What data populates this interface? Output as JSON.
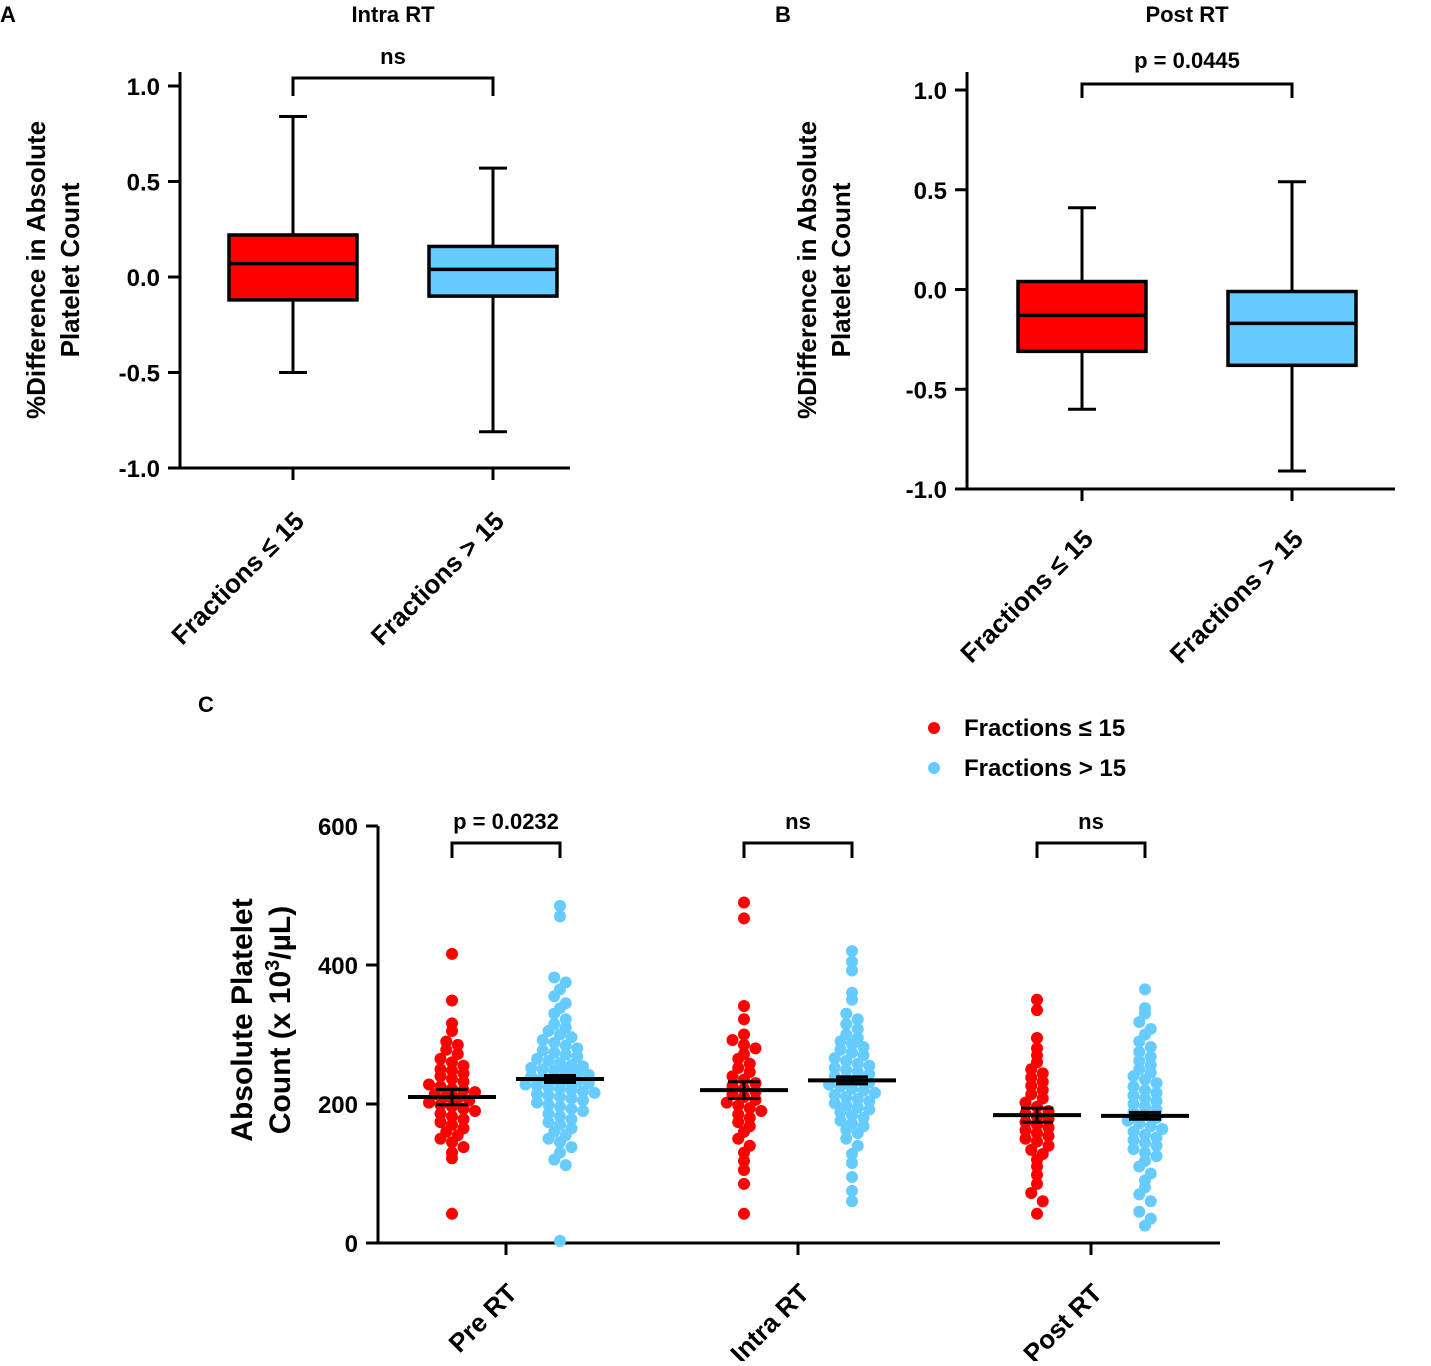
{
  "chart_data": [
    {
      "panel": "A",
      "type": "box",
      "title": "Intra RT",
      "ylabel_line1": "%Difference in Absolute",
      "ylabel_line2": "Platelet Count",
      "ylim": [
        -1.0,
        1.0
      ],
      "yticks": [
        "1.0",
        "0.5",
        "0.0",
        "-0.5",
        "-1.0"
      ],
      "ytick_values": [
        1.0,
        0.5,
        0.0,
        -0.5,
        -1.0
      ],
      "categories": [
        "Fractions ≤ 15",
        "Fractions > 15"
      ],
      "colors": [
        "#ff0000",
        "#66ccff"
      ],
      "boxes": [
        {
          "min": -0.5,
          "q1": -0.12,
          "median": 0.07,
          "q3": 0.22,
          "max": 0.84
        },
        {
          "min": -0.81,
          "q1": -0.1,
          "median": 0.04,
          "q3": 0.16,
          "max": 0.57
        }
      ],
      "comparison": "ns"
    },
    {
      "panel": "B",
      "type": "box",
      "title": "Post RT",
      "ylabel_line1": "%Difference in Absolute",
      "ylabel_line2": "Platelet Count",
      "ylim": [
        -1.0,
        1.0
      ],
      "yticks": [
        "1.0",
        "0.5",
        "0.0",
        "-0.5",
        "-1.0"
      ],
      "ytick_values": [
        1.0,
        0.5,
        0.0,
        -0.5,
        -1.0
      ],
      "categories": [
        "Fractions ≤ 15",
        "Fractions > 15"
      ],
      "colors": [
        "#ff0000",
        "#66ccff"
      ],
      "boxes": [
        {
          "min": -0.6,
          "q1": -0.31,
          "median": -0.13,
          "q3": 0.04,
          "max": 0.41
        },
        {
          "min": -0.91,
          "q1": -0.38,
          "median": -0.17,
          "q3": -0.01,
          "max": 0.54
        }
      ],
      "comparison": "p = 0.0445"
    },
    {
      "panel": "C",
      "type": "scatter",
      "ylabel_line1": "Absolute Platelet",
      "ylabel_line2_pre": "Count (x 10",
      "ylabel_sup": "3",
      "ylabel_line2_post": "/µL)",
      "ylim": [
        0,
        600
      ],
      "yticks": [
        "600",
        "400",
        "200",
        "0"
      ],
      "ytick_values": [
        600,
        400,
        200,
        0
      ],
      "legend": [
        "Fractions ≤ 15",
        "Fractions > 15"
      ],
      "colors": [
        "#ff0000",
        "#66ccff"
      ],
      "groups": [
        {
          "label": "Pre RT",
          "comparison": "p = 0.0232",
          "series": [
            {
              "mean": 210,
              "sem": 11,
              "values": [
                416,
                349,
                316,
                305,
                290,
                285,
                278,
                272,
                265,
                260,
                255,
                250,
                248,
                244,
                240,
                236,
                232,
                228,
                225,
                222,
                220,
                217,
                214,
                211,
                208,
                205,
                202,
                199,
                196,
                193,
                190,
                186,
                182,
                178,
                174,
                170,
                165,
                160,
                155,
                150,
                145,
                138,
                130,
                122,
                42
              ]
            },
            {
              "mean": 236,
              "sem": 5,
              "values": [
                485,
                470,
                382,
                375,
                365,
                355,
                345,
                338,
                330,
                322,
                315,
                310,
                305,
                300,
                296,
                292,
                288,
                284,
                280,
                277,
                274,
                271,
                268,
                265,
                262,
                259,
                256,
                254,
                252,
                250,
                248,
                246,
                244,
                242,
                240,
                238,
                236,
                234,
                232,
                230,
                228,
                226,
                224,
                222,
                220,
                218,
                216,
                214,
                212,
                210,
                208,
                205,
                202,
                199,
                196,
                193,
                190,
                186,
                182,
                178,
                174,
                170,
                165,
                160,
                155,
                150,
                145,
                138,
                130,
                120,
                112,
                3
              ]
            }
          ]
        },
        {
          "label": "Intra RT",
          "comparison": "ns",
          "series": [
            {
              "mean": 220,
              "sem": 12,
              "values": [
                490,
                467,
                341,
                322,
                300,
                292,
                285,
                280,
                272,
                265,
                258,
                252,
                246,
                240,
                235,
                230,
                226,
                222,
                218,
                214,
                210,
                206,
                202,
                198,
                194,
                190,
                185,
                180,
                174,
                168,
                160,
                150,
                140,
                130,
                118,
                105,
                85,
                42
              ]
            },
            {
              "mean": 234,
              "sem": 5,
              "values": [
                420,
                405,
                392,
                360,
                350,
                330,
                322,
                315,
                308,
                300,
                295,
                290,
                286,
                282,
                278,
                274,
                270,
                266,
                262,
                258,
                255,
                252,
                249,
                246,
                243,
                240,
                237,
                234,
                231,
                228,
                225,
                222,
                219,
                216,
                213,
                210,
                207,
                204,
                201,
                198,
                195,
                192,
                188,
                184,
                180,
                176,
                172,
                168,
                163,
                158,
                150,
                140,
                128,
                115,
                95,
                75,
                60
              ]
            }
          ]
        },
        {
          "label": "Post RT",
          "comparison": "ns",
          "series": [
            {
              "mean": 184,
              "sem": 10,
              "values": [
                350,
                335,
                295,
                280,
                270,
                260,
                250,
                244,
                238,
                232,
                226,
                220,
                214,
                208,
                202,
                196,
                190,
                186,
                182,
                178,
                174,
                170,
                166,
                162,
                158,
                154,
                150,
                146,
                140,
                134,
                128,
                120,
                110,
                98,
                85,
                72,
                60,
                42
              ]
            },
            {
              "mean": 183,
              "sem": 5,
              "values": [
                365,
                338,
                330,
                318,
                308,
                300,
                290,
                282,
                275,
                268,
                262,
                256,
                250,
                245,
                240,
                235,
                230,
                225,
                220,
                216,
                212,
                208,
                204,
                200,
                196,
                192,
                188,
                184,
                180,
                176,
                172,
                168,
                164,
                160,
                156,
                152,
                148,
                144,
                140,
                135,
                130,
                125,
                118,
                110,
                100,
                90,
                80,
                70,
                60,
                45,
                35,
                25
              ]
            }
          ]
        }
      ]
    }
  ]
}
